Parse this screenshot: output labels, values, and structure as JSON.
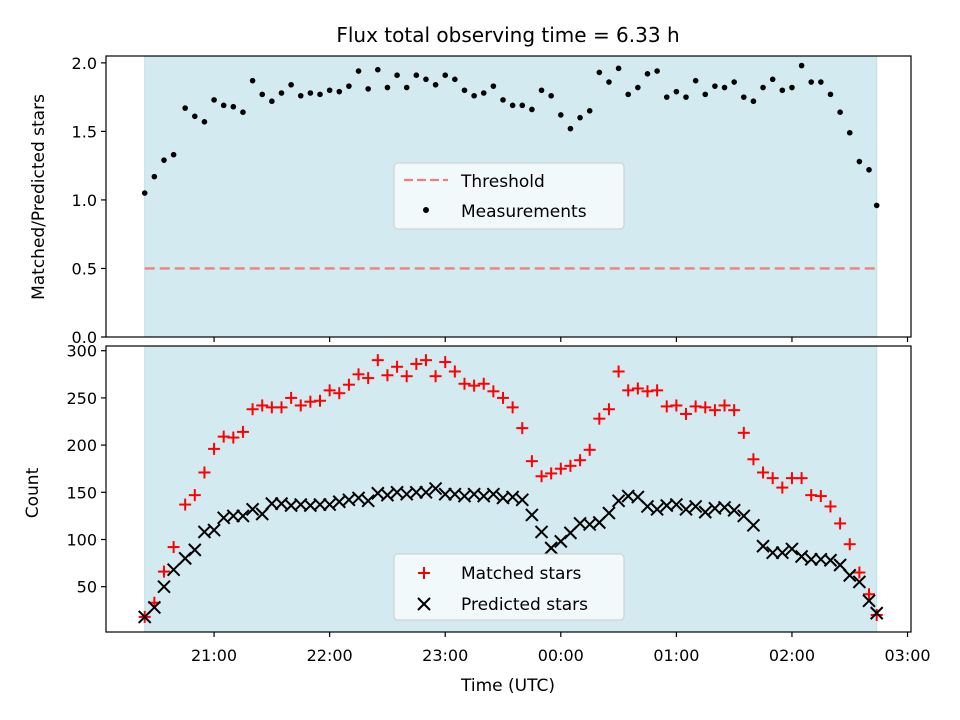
{
  "figure": {
    "title": "Flux total observing time = 6.33 h"
  },
  "chart_data": [
    {
      "type": "scatter",
      "ylabel": "Matched/Predicted stars",
      "xlabel": "",
      "ylim": [
        0,
        2.05
      ],
      "yticks": [
        "0.0",
        "0.5",
        "1.0",
        "1.5",
        "2.0"
      ],
      "shaded_interval": [
        "20:24",
        "26:44"
      ],
      "legend_position": "center",
      "series": [
        {
          "name": "Threshold",
          "kind": "dashed-line",
          "color": "#f08080",
          "y": 0.5,
          "x_range": [
            "20:24",
            "26:44"
          ]
        },
        {
          "name": "Measurements",
          "kind": "points",
          "color": "#000000",
          "x": [
            "20:24",
            "20:29",
            "20:34",
            "20:39",
            "20:45",
            "20:50",
            "20:55",
            "21:00",
            "21:05",
            "21:10",
            "21:15",
            "21:20",
            "21:25",
            "21:30",
            "21:35",
            "21:40",
            "21:45",
            "21:50",
            "21:55",
            "22:00",
            "22:05",
            "22:10",
            "22:15",
            "22:20",
            "22:25",
            "22:30",
            "22:35",
            "22:40",
            "22:45",
            "22:50",
            "22:55",
            "23:00",
            "23:05",
            "23:10",
            "23:15",
            "23:20",
            "23:25",
            "23:30",
            "23:35",
            "23:40",
            "23:45",
            "23:50",
            "23:55",
            "24:00",
            "24:05",
            "24:10",
            "24:15",
            "24:20",
            "24:25",
            "24:30",
            "24:35",
            "24:40",
            "24:45",
            "24:50",
            "24:55",
            "25:00",
            "25:05",
            "25:10",
            "25:15",
            "25:20",
            "25:25",
            "25:30",
            "25:35",
            "25:40",
            "25:45",
            "25:50",
            "25:55",
            "26:00",
            "26:05",
            "26:10",
            "26:15",
            "26:20",
            "26:25",
            "26:30",
            "26:35",
            "26:40",
            "26:44"
          ],
          "y": [
            1.05,
            1.17,
            1.29,
            1.33,
            1.67,
            1.61,
            1.57,
            1.73,
            1.69,
            1.68,
            1.64,
            1.87,
            1.77,
            1.72,
            1.78,
            1.84,
            1.76,
            1.78,
            1.77,
            1.8,
            1.79,
            1.83,
            1.94,
            1.81,
            1.95,
            1.82,
            1.91,
            1.82,
            1.91,
            1.88,
            1.84,
            1.91,
            1.88,
            1.8,
            1.76,
            1.78,
            1.83,
            1.73,
            1.69,
            1.69,
            1.66,
            1.8,
            1.76,
            1.62,
            1.52,
            1.6,
            1.65,
            1.93,
            1.86,
            1.96,
            1.77,
            1.82,
            1.92,
            1.94,
            1.75,
            1.79,
            1.75,
            1.87,
            1.77,
            1.83,
            1.82,
            1.86,
            1.75,
            1.72,
            1.82,
            1.88,
            1.8,
            1.82,
            1.98,
            1.86,
            1.86,
            1.77,
            1.64,
            1.49,
            1.28,
            1.22,
            0.96
          ]
        }
      ]
    },
    {
      "type": "scatter",
      "xlabel": "Time (UTC)",
      "ylabel": "Count",
      "ylim": [
        2,
        305
      ],
      "yticks": [
        "50",
        "100",
        "150",
        "200",
        "250",
        "300"
      ],
      "xticks": [
        "21:00",
        "22:00",
        "23:00",
        "00:00",
        "01:00",
        "02:00",
        "03:00"
      ],
      "xtick_hours": [
        21,
        22,
        23,
        24,
        25,
        26,
        27
      ],
      "xlim_hours": [
        20.065,
        27.03
      ],
      "shaded_interval": [
        "20:24",
        "26:44"
      ],
      "legend_position": "lower center",
      "series": [
        {
          "name": "Matched stars",
          "kind": "plus",
          "color": "#ff0000",
          "x": [
            "20:24",
            "20:29",
            "20:34",
            "20:39",
            "20:45",
            "20:50",
            "20:55",
            "21:00",
            "21:05",
            "21:10",
            "21:15",
            "21:20",
            "21:25",
            "21:30",
            "21:35",
            "21:40",
            "21:45",
            "21:50",
            "21:55",
            "22:00",
            "22:05",
            "22:10",
            "22:15",
            "22:20",
            "22:25",
            "22:30",
            "22:35",
            "22:40",
            "22:45",
            "22:50",
            "22:55",
            "23:00",
            "23:05",
            "23:10",
            "23:15",
            "23:20",
            "23:25",
            "23:30",
            "23:35",
            "23:40",
            "23:45",
            "23:50",
            "23:55",
            "24:00",
            "24:05",
            "24:10",
            "24:15",
            "24:20",
            "24:25",
            "24:30",
            "24:35",
            "24:40",
            "24:45",
            "24:50",
            "24:55",
            "25:00",
            "25:05",
            "25:10",
            "25:15",
            "25:20",
            "25:25",
            "25:30",
            "25:35",
            "25:40",
            "25:45",
            "25:50",
            "25:55",
            "26:00",
            "26:05",
            "26:10",
            "26:15",
            "26:20",
            "26:25",
            "26:30",
            "26:35",
            "26:40",
            "26:44"
          ],
          "y": [
            18,
            33,
            66,
            92,
            137,
            147,
            171,
            196,
            209,
            208,
            214,
            238,
            242,
            240,
            240,
            250,
            242,
            246,
            247,
            258,
            255,
            264,
            275,
            271,
            290,
            274,
            283,
            273,
            286,
            290,
            273,
            288,
            278,
            265,
            263,
            265,
            257,
            250,
            240,
            218,
            183,
            167,
            170,
            175,
            178,
            184,
            195,
            228,
            238,
            278,
            258,
            260,
            257,
            258,
            241,
            242,
            233,
            241,
            240,
            237,
            242,
            237,
            213,
            185,
            171,
            165,
            155,
            165,
            165,
            147,
            146,
            135,
            117,
            95,
            65,
            42,
            20
          ]
        },
        {
          "name": "Predicted stars",
          "kind": "cross",
          "color": "#000000",
          "x": [
            "20:24",
            "20:29",
            "20:34",
            "20:39",
            "20:45",
            "20:50",
            "20:55",
            "21:00",
            "21:05",
            "21:10",
            "21:15",
            "21:20",
            "21:25",
            "21:30",
            "21:35",
            "21:40",
            "21:45",
            "21:50",
            "21:55",
            "22:00",
            "22:05",
            "22:10",
            "22:15",
            "22:20",
            "22:25",
            "22:30",
            "22:35",
            "22:40",
            "22:45",
            "22:50",
            "22:55",
            "23:00",
            "23:05",
            "23:10",
            "23:15",
            "23:20",
            "23:25",
            "23:30",
            "23:35",
            "23:40",
            "23:45",
            "23:50",
            "23:55",
            "24:00",
            "24:05",
            "24:10",
            "24:15",
            "24:20",
            "24:25",
            "24:30",
            "24:35",
            "24:40",
            "24:45",
            "24:50",
            "24:55",
            "25:00",
            "25:05",
            "25:10",
            "25:15",
            "25:20",
            "25:25",
            "25:30",
            "25:35",
            "25:40",
            "25:45",
            "25:50",
            "25:55",
            "26:00",
            "26:05",
            "26:10",
            "26:15",
            "26:20",
            "26:25",
            "26:30",
            "26:35",
            "26:40",
            "26:44"
          ],
          "y": [
            18,
            28,
            50,
            68,
            80,
            89,
            108,
            110,
            123,
            125,
            125,
            132,
            127,
            138,
            138,
            136,
            137,
            136,
            137,
            137,
            140,
            142,
            144,
            141,
            149,
            147,
            150,
            148,
            150,
            150,
            154,
            148,
            148,
            146,
            148,
            146,
            148,
            144,
            145,
            142,
            126,
            108,
            91,
            98,
            107,
            117,
            116,
            118,
            128,
            141,
            146,
            145,
            135,
            132,
            136,
            137,
            132,
            135,
            129,
            133,
            134,
            131,
            125,
            115,
            93,
            86,
            86,
            90,
            82,
            79,
            79,
            78,
            73,
            62,
            55,
            35,
            22
          ]
        }
      ]
    }
  ]
}
